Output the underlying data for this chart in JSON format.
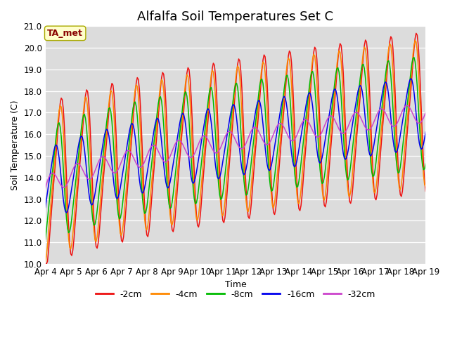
{
  "title": "Alfalfa Soil Temperatures Set C",
  "xlabel": "Time",
  "ylabel": "Soil Temperature (C)",
  "ylim": [
    10.0,
    21.0
  ],
  "yticks": [
    10.0,
    11.0,
    12.0,
    13.0,
    14.0,
    15.0,
    16.0,
    17.0,
    18.0,
    19.0,
    20.0,
    21.0
  ],
  "xtick_labels": [
    "Apr 4",
    "Apr 5",
    "Apr 6",
    "Apr 7",
    "Apr 8",
    "Apr 9",
    "Apr 10",
    "Apr 11",
    "Apr 12",
    "Apr 13",
    "Apr 14",
    "Apr 15",
    "Apr 16",
    "Apr 17",
    "Apr 18",
    "Apr 19"
  ],
  "colors": {
    "-2cm": "#ee1111",
    "-4cm": "#ff8800",
    "-8cm": "#00bb00",
    "-16cm": "#0000ee",
    "-32cm": "#cc44cc"
  },
  "legend_labels": [
    "-2cm",
    "-4cm",
    "-8cm",
    "-16cm",
    "-32cm"
  ],
  "annotation_text": "TA_met",
  "annotation_color": "#880000",
  "annotation_bg": "#ffffcc",
  "bg_color": "#dcdcdc",
  "title_fontsize": 13,
  "label_fontsize": 9,
  "tick_fontsize": 8.5
}
